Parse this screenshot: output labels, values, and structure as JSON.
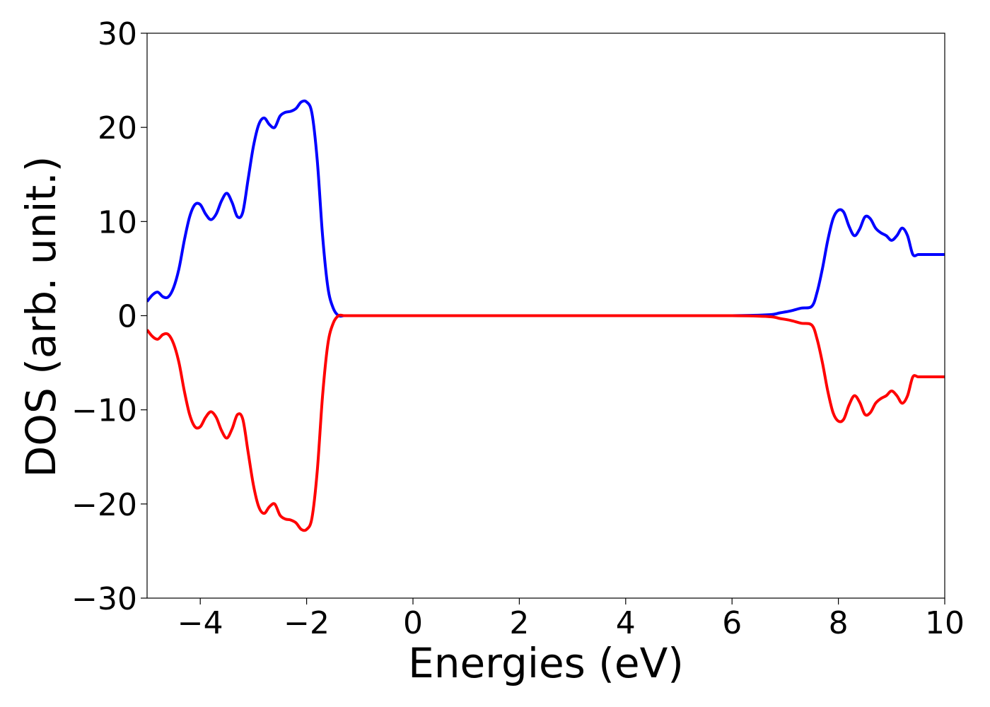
{
  "chart_data": {
    "type": "line",
    "title": "",
    "xlabel": "Energies (eV)",
    "ylabel": "DOS (arb. unit.)",
    "xlim": [
      -5,
      10
    ],
    "ylim": [
      -30,
      30
    ],
    "xticks": [
      -4,
      -2,
      0,
      2,
      4,
      6,
      8,
      10
    ],
    "xtick_labels": [
      "−4",
      "−2",
      "0",
      "2",
      "4",
      "6",
      "8",
      "10"
    ],
    "yticks": [
      -30,
      -20,
      -10,
      0,
      10,
      20,
      30
    ],
    "ytick_labels": [
      "−30",
      "−20",
      "−10",
      "0",
      "10",
      "20",
      "30"
    ],
    "grid": false,
    "legend": "none",
    "series": [
      {
        "color": "#0000ff",
        "x": [
          -5.0,
          -4.9,
          -4.8,
          -4.7,
          -4.6,
          -4.5,
          -4.4,
          -4.3,
          -4.2,
          -4.1,
          -4.0,
          -3.9,
          -3.8,
          -3.7,
          -3.6,
          -3.5,
          -3.4,
          -3.3,
          -3.2,
          -3.1,
          -3.0,
          -2.9,
          -2.8,
          -2.7,
          -2.6,
          -2.5,
          -2.4,
          -2.3,
          -2.2,
          -2.1,
          -2.0,
          -1.9,
          -1.8,
          -1.7,
          -1.6,
          -1.5,
          -1.4,
          -1.3,
          -1.2,
          -1.1,
          -1.0,
          -0.9,
          -0.8,
          -0.7,
          -0.6,
          -0.5,
          -0.3,
          0.0,
          2.0,
          4.0,
          6.0,
          6.7,
          6.9,
          7.1,
          7.3,
          7.5,
          7.6,
          7.7,
          7.8,
          7.9,
          8.0,
          8.1,
          8.2,
          8.3,
          8.4,
          8.5,
          8.6,
          8.7,
          8.8,
          8.9,
          9.0,
          9.1,
          9.2,
          9.3,
          9.4,
          9.5,
          9.6,
          9.7,
          9.8,
          9.9,
          10.0
        ],
        "y": [
          1.5,
          2.2,
          2.5,
          2.0,
          2.0,
          3.0,
          5.0,
          8.0,
          10.5,
          11.8,
          11.8,
          10.8,
          10.2,
          10.8,
          12.2,
          13.0,
          12.0,
          10.5,
          11.0,
          14.5,
          18.0,
          20.3,
          21.0,
          20.3,
          20.0,
          21.2,
          21.6,
          21.7,
          22.0,
          22.7,
          22.7,
          21.5,
          16.5,
          8.5,
          3.0,
          0.8,
          0.0,
          0.0,
          0.0,
          0.0,
          0.0,
          0.0,
          0.0,
          0.0,
          0.0,
          0.0,
          0.0,
          0.0,
          0.0,
          0.0,
          0.0,
          0.1,
          0.3,
          0.5,
          0.8,
          1.0,
          2.5,
          5.0,
          8.0,
          10.3,
          11.2,
          11.0,
          9.5,
          8.5,
          9.2,
          10.5,
          10.3,
          9.3,
          8.8,
          8.5,
          8.0,
          8.5,
          9.3,
          8.5,
          6.5,
          6.5,
          6.5,
          6.5,
          6.5,
          6.5,
          6.5
        ]
      },
      {
        "color": "#ff0000",
        "x": [
          -5.0,
          -4.9,
          -4.8,
          -4.7,
          -4.6,
          -4.5,
          -4.4,
          -4.3,
          -4.2,
          -4.1,
          -4.0,
          -3.9,
          -3.8,
          -3.7,
          -3.6,
          -3.5,
          -3.4,
          -3.3,
          -3.2,
          -3.1,
          -3.0,
          -2.9,
          -2.8,
          -2.7,
          -2.6,
          -2.5,
          -2.4,
          -2.3,
          -2.2,
          -2.1,
          -2.0,
          -1.9,
          -1.8,
          -1.7,
          -1.6,
          -1.5,
          -1.4,
          -1.3,
          -1.2,
          -1.1,
          -1.0,
          -0.9,
          -0.8,
          -0.7,
          -0.6,
          -0.5,
          -0.3,
          0.0,
          2.0,
          4.0,
          6.0,
          6.7,
          6.9,
          7.1,
          7.3,
          7.5,
          7.6,
          7.7,
          7.8,
          7.9,
          8.0,
          8.1,
          8.2,
          8.3,
          8.4,
          8.5,
          8.6,
          8.7,
          8.8,
          8.9,
          9.0,
          9.1,
          9.2,
          9.3,
          9.4,
          9.5,
          9.6,
          9.7,
          9.8,
          9.9,
          10.0
        ],
        "y": [
          -1.5,
          -2.2,
          -2.5,
          -2.0,
          -2.0,
          -3.0,
          -5.0,
          -8.0,
          -10.5,
          -11.8,
          -11.8,
          -10.8,
          -10.2,
          -10.8,
          -12.2,
          -13.0,
          -12.0,
          -10.5,
          -11.0,
          -14.5,
          -18.0,
          -20.3,
          -21.0,
          -20.3,
          -20.0,
          -21.2,
          -21.6,
          -21.7,
          -22.0,
          -22.7,
          -22.7,
          -21.5,
          -16.5,
          -8.5,
          -3.0,
          -0.8,
          0.0,
          0.0,
          0.0,
          0.0,
          0.0,
          0.0,
          0.0,
          0.0,
          0.0,
          0.0,
          0.0,
          0.0,
          0.0,
          0.0,
          0.0,
          -0.1,
          -0.3,
          -0.5,
          -0.8,
          -1.0,
          -2.5,
          -5.0,
          -8.0,
          -10.3,
          -11.2,
          -11.0,
          -9.5,
          -8.5,
          -9.2,
          -10.5,
          -10.3,
          -9.3,
          -8.8,
          -8.5,
          -8.0,
          -8.5,
          -9.3,
          -8.5,
          -6.5,
          -6.5,
          -6.5,
          -6.5,
          -6.5,
          -6.5,
          -6.5
        ]
      }
    ]
  }
}
